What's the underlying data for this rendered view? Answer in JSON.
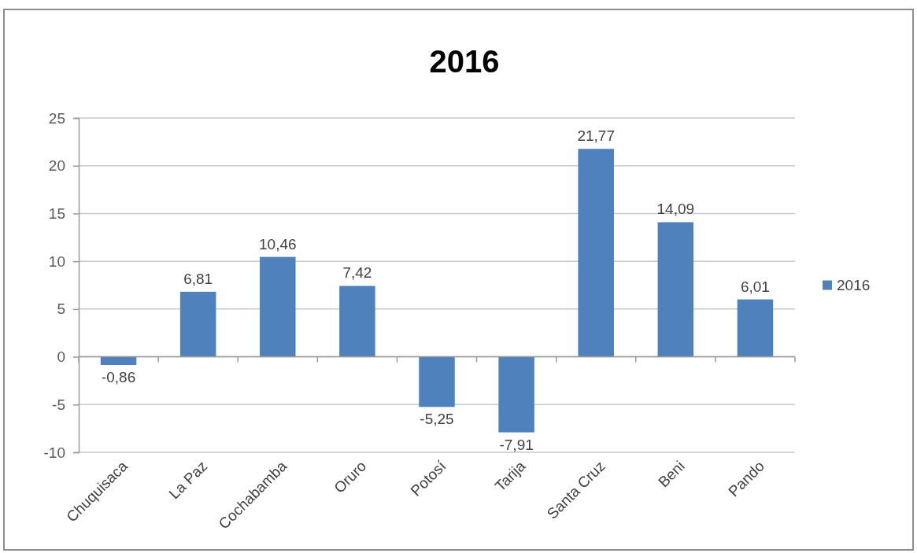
{
  "chart_data": {
    "type": "bar",
    "title": "2016",
    "categories": [
      "Chuquisaca",
      "La Paz",
      "Cochabamba",
      "Oruro",
      "Potosí",
      "Tarija",
      "Santa Cruz",
      "Beni",
      "Pando"
    ],
    "series": [
      {
        "name": "2016",
        "color": "#4f81bd",
        "values": [
          -0.86,
          6.81,
          10.46,
          7.42,
          -5.25,
          -7.91,
          21.77,
          14.09,
          6.01
        ],
        "value_labels": [
          "-0,86",
          "6,81",
          "10,46",
          "7,42",
          "-5,25",
          "-7,91",
          "21,77",
          "14,09",
          "6,01"
        ]
      }
    ],
    "ylim": [
      -10,
      25
    ],
    "yticks": [
      -10,
      -5,
      0,
      5,
      10,
      15,
      20,
      25
    ],
    "grid": "y",
    "legend": "right"
  }
}
